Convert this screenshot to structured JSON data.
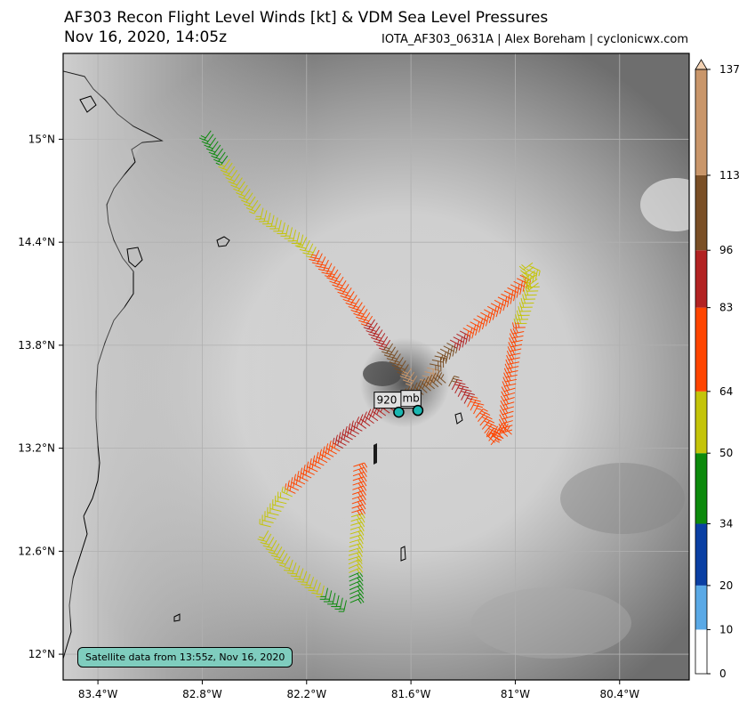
{
  "header": {
    "title": "AF303 Recon Flight Level Winds [kt] & VDM Sea Level Pressures",
    "subtitle": "Nov 16, 2020, 14:05z",
    "credit": "IOTA_AF303_0631A | Alex Boreham | cyclonicwx.com"
  },
  "map": {
    "lon_range": [
      -83.6,
      -80.0
    ],
    "lat_range": [
      11.85,
      15.5
    ],
    "x_ticks": [
      {
        "lon": -83.4,
        "label": "83.4°W"
      },
      {
        "lon": -82.8,
        "label": "82.8°W"
      },
      {
        "lon": -82.2,
        "label": "82.2°W"
      },
      {
        "lon": -81.6,
        "label": "81.6°W"
      },
      {
        "lon": -81.0,
        "label": "81°W"
      },
      {
        "lon": -80.4,
        "label": "80.4°W"
      }
    ],
    "y_ticks": [
      {
        "lat": 15.0,
        "label": "15°N"
      },
      {
        "lat": 14.4,
        "label": "14.4°N"
      },
      {
        "lat": 13.8,
        "label": "13.8°N"
      },
      {
        "lat": 13.2,
        "label": "13.2°N"
      },
      {
        "lat": 12.6,
        "label": "12.6°N"
      },
      {
        "lat": 12.0,
        "label": "12°N"
      }
    ],
    "grid": true
  },
  "colorbar": {
    "ticks": [
      {
        "v": 0,
        "label": "0"
      },
      {
        "v": 10,
        "label": "10"
      },
      {
        "v": 20,
        "label": "20"
      },
      {
        "v": 34,
        "label": "34"
      },
      {
        "v": 50,
        "label": "50"
      },
      {
        "v": 64,
        "label": "64"
      },
      {
        "v": 83,
        "label": "83"
      },
      {
        "v": 96,
        "label": "96"
      },
      {
        "v": 113,
        "label": "113"
      },
      {
        "v": 137,
        "label": "137"
      }
    ],
    "bands": [
      {
        "from": 0,
        "to": 10,
        "color": "#ffffff"
      },
      {
        "from": 10,
        "to": 20,
        "color": "#5aa9e6"
      },
      {
        "from": 20,
        "to": 34,
        "color": "#0a3fa3"
      },
      {
        "from": 34,
        "to": 50,
        "color": "#0c8a0c"
      },
      {
        "from": 50,
        "to": 64,
        "color": "#c4c40a"
      },
      {
        "from": 64,
        "to": 83,
        "color": "#ff4500"
      },
      {
        "from": 83,
        "to": 96,
        "color": "#b22222"
      },
      {
        "from": 96,
        "to": 113,
        "color": "#7a4f26"
      },
      {
        "from": 113,
        "to": 137,
        "color": "#c9966a"
      }
    ]
  },
  "pressure_labels": [
    {
      "text": "920 mb",
      "lon": -81.68,
      "lat": 13.48
    },
    {
      "text": "mb",
      "lon": -81.6,
      "lat": 13.49
    }
  ],
  "centers": [
    {
      "lon": -81.67,
      "lat": 13.41
    },
    {
      "lon": -81.56,
      "lat": 13.42
    }
  ],
  "satellite_note": "Satellite data from 13:55z, Nov 16, 2020",
  "track": [
    {
      "lon": -82.75,
      "lat": 15.05,
      "wind": 40
    },
    {
      "lon": -82.6,
      "lat": 14.82,
      "wind": 55
    },
    {
      "lon": -82.45,
      "lat": 14.6,
      "wind": 58
    },
    {
      "lon": -82.2,
      "lat": 14.43,
      "wind": 60
    },
    {
      "lon": -82.02,
      "lat": 14.24,
      "wind": 70
    },
    {
      "lon": -81.88,
      "lat": 14.05,
      "wind": 75
    },
    {
      "lon": -81.75,
      "lat": 13.87,
      "wind": 90
    },
    {
      "lon": -81.63,
      "lat": 13.71,
      "wind": 110
    },
    {
      "lon": -81.55,
      "lat": 13.6,
      "wind": 118
    },
    {
      "lon": -81.45,
      "lat": 13.76,
      "wind": 108
    },
    {
      "lon": -81.3,
      "lat": 13.9,
      "wind": 80
    },
    {
      "lon": -81.1,
      "lat": 14.08,
      "wind": 72
    },
    {
      "lon": -80.9,
      "lat": 14.28,
      "wind": 60
    },
    {
      "lon": -80.86,
      "lat": 14.14,
      "wind": 58
    },
    {
      "lon": -80.95,
      "lat": 13.88,
      "wind": 65
    },
    {
      "lon": -81.0,
      "lat": 13.55,
      "wind": 70
    },
    {
      "lon": -81.02,
      "lat": 13.28,
      "wind": 72
    },
    {
      "lon": -81.14,
      "lat": 13.22,
      "wind": 74
    },
    {
      "lon": -81.24,
      "lat": 13.4,
      "wind": 78
    },
    {
      "lon": -81.4,
      "lat": 13.58,
      "wind": 100
    },
    {
      "lon": -81.55,
      "lat": 13.5,
      "wind": 110
    },
    {
      "lon": -81.7,
      "lat": 13.42,
      "wind": 95
    },
    {
      "lon": -81.88,
      "lat": 13.3,
      "wind": 92
    },
    {
      "lon": -82.1,
      "lat": 13.1,
      "wind": 75
    },
    {
      "lon": -82.3,
      "lat": 12.9,
      "wind": 62
    },
    {
      "lon": -82.42,
      "lat": 12.72,
      "wind": 55
    },
    {
      "lon": -82.28,
      "lat": 12.55,
      "wind": 60
    },
    {
      "lon": -82.1,
      "lat": 12.4,
      "wind": 50
    },
    {
      "lon": -81.95,
      "lat": 12.3,
      "wind": 40
    },
    {
      "lon": -81.96,
      "lat": 12.55,
      "wind": 55
    },
    {
      "lon": -81.94,
      "lat": 12.85,
      "wind": 65
    },
    {
      "lon": -81.93,
      "lat": 13.12,
      "wind": 70
    }
  ]
}
